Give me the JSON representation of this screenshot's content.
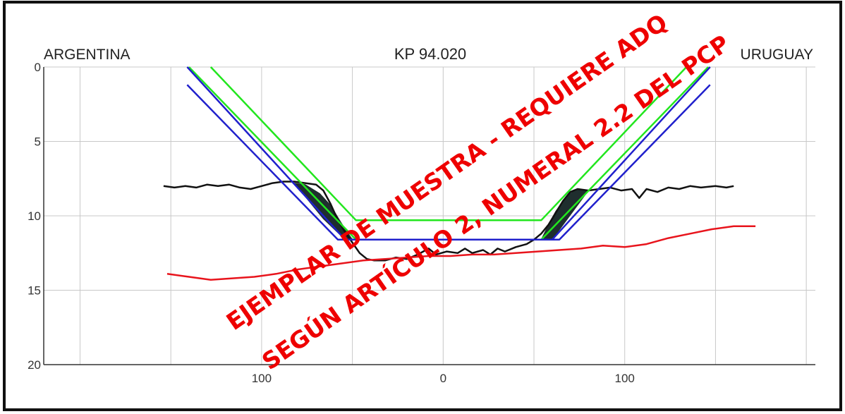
{
  "chart_data": {
    "type": "line",
    "title": "KP 94.020",
    "left_label": "ARGENTINA",
    "right_label": "URUGUAY",
    "x_ticks": [
      -100,
      0,
      100
    ],
    "x_tick_labels": [
      "100",
      "0",
      "100"
    ],
    "y_ticks": [
      0,
      5,
      10,
      15,
      20
    ],
    "xlim": [
      -220,
      205
    ],
    "ylim": [
      0,
      20
    ],
    "y_inverted": true,
    "grid": true,
    "colors": {
      "bed": "#111111",
      "fill": "#1f2e2e",
      "rock": "#e8141c",
      "green": "#22e61e",
      "blue": "#2020cc",
      "frame": "#111111",
      "grid": "#c8c8c8",
      "watermark": "#ee0000"
    },
    "series": [
      {
        "key": "bed",
        "values": [
          [
            -154,
            8.0
          ],
          [
            -148,
            8.1
          ],
          [
            -142,
            8.0
          ],
          [
            -136,
            8.1
          ],
          [
            -130,
            7.9
          ],
          [
            -124,
            8.0
          ],
          [
            -118,
            7.9
          ],
          [
            -112,
            8.1
          ],
          [
            -106,
            8.2
          ],
          [
            -100,
            8.0
          ],
          [
            -94,
            7.8
          ],
          [
            -88,
            7.7
          ],
          [
            -82,
            7.7
          ],
          [
            -76,
            7.8
          ],
          [
            -70,
            7.9
          ],
          [
            -66,
            8.3
          ],
          [
            -62,
            9.2
          ],
          [
            -58,
            10.3
          ],
          [
            -54,
            11.1
          ],
          [
            -50,
            11.8
          ],
          [
            -46,
            12.5
          ],
          [
            -42,
            12.9
          ],
          [
            -38,
            13.0
          ],
          [
            -32,
            13.0
          ],
          [
            -26,
            12.8
          ],
          [
            -20,
            12.9
          ],
          [
            -14,
            12.6
          ],
          [
            -8,
            12.2
          ],
          [
            -4,
            12.6
          ],
          [
            2,
            12.4
          ],
          [
            8,
            12.5
          ],
          [
            12,
            12.2
          ],
          [
            16,
            12.5
          ],
          [
            22,
            12.3
          ],
          [
            26,
            12.6
          ],
          [
            30,
            12.2
          ],
          [
            34,
            12.4
          ],
          [
            40,
            12.1
          ],
          [
            46,
            11.9
          ],
          [
            50,
            11.6
          ],
          [
            54,
            11.2
          ],
          [
            58,
            10.6
          ],
          [
            62,
            9.8
          ],
          [
            66,
            9.0
          ],
          [
            70,
            8.4
          ],
          [
            74,
            8.2
          ],
          [
            80,
            8.3
          ],
          [
            86,
            8.2
          ],
          [
            92,
            8.1
          ],
          [
            98,
            8.3
          ],
          [
            104,
            8.2
          ],
          [
            108,
            8.8
          ],
          [
            112,
            8.2
          ],
          [
            118,
            8.4
          ],
          [
            124,
            8.1
          ],
          [
            130,
            8.2
          ],
          [
            136,
            8.0
          ],
          [
            142,
            8.1
          ],
          [
            150,
            8.0
          ],
          [
            156,
            8.1
          ],
          [
            160,
            8.0
          ]
        ]
      },
      {
        "key": "rock",
        "values": [
          [
            -152,
            13.9
          ],
          [
            -140,
            14.1
          ],
          [
            -128,
            14.3
          ],
          [
            -116,
            14.2
          ],
          [
            -104,
            14.1
          ],
          [
            -92,
            13.9
          ],
          [
            -80,
            13.6
          ],
          [
            -68,
            13.4
          ],
          [
            -56,
            13.2
          ],
          [
            -44,
            13.0
          ],
          [
            -32,
            12.9
          ],
          [
            -20,
            12.8
          ],
          [
            -8,
            12.7
          ],
          [
            4,
            12.7
          ],
          [
            16,
            12.6
          ],
          [
            28,
            12.6
          ],
          [
            40,
            12.5
          ],
          [
            52,
            12.4
          ],
          [
            64,
            12.3
          ],
          [
            76,
            12.2
          ],
          [
            88,
            12.0
          ],
          [
            100,
            12.1
          ],
          [
            112,
            11.9
          ],
          [
            124,
            11.5
          ],
          [
            136,
            11.2
          ],
          [
            148,
            10.9
          ],
          [
            160,
            10.7
          ],
          [
            172,
            10.7
          ]
        ]
      },
      {
        "key": "green",
        "values": [
          [
            -128,
            0
          ],
          [
            -48,
            10.3
          ],
          [
            54,
            10.3
          ],
          [
            134,
            0
          ]
        ]
      },
      {
        "key": "green",
        "values": [
          [
            -140,
            0
          ],
          [
            -48,
            11.6
          ],
          [
            54,
            11.6
          ],
          [
            146,
            0
          ]
        ]
      },
      {
        "key": "blue",
        "values": [
          [
            -141,
            0
          ],
          [
            -54,
            11.6
          ],
          [
            60,
            11.6
          ],
          [
            147,
            0
          ]
        ]
      },
      {
        "key": "blue",
        "values": [
          [
            -141,
            1.2
          ],
          [
            -58,
            11.6
          ],
          [
            64,
            11.6
          ],
          [
            147,
            1.2
          ]
        ]
      }
    ],
    "fills": [
      {
        "key": "fill",
        "values": [
          [
            -82,
            7.8
          ],
          [
            -76,
            7.9
          ],
          [
            -68,
            8.5
          ],
          [
            -62,
            9.3
          ],
          [
            -56,
            10.5
          ],
          [
            -50,
            11.6
          ],
          [
            -54,
            11.6
          ],
          [
            -66,
            10.2
          ],
          [
            -74,
            9.0
          ]
        ]
      },
      {
        "key": "fill",
        "values": [
          [
            54,
            11.6
          ],
          [
            58,
            10.6
          ],
          [
            62,
            9.7
          ],
          [
            66,
            9.0
          ],
          [
            70,
            8.5
          ],
          [
            74,
            8.2
          ],
          [
            80,
            8.3
          ],
          [
            60,
            11.6
          ]
        ]
      }
    ]
  },
  "watermark": {
    "line1": "EJEMPLAR DE MUESTRA - REQUIERE ADQ",
    "line2": "SEGÚN ARTÍCULO 2, NUMERAL 2.2 DEL PCP"
  }
}
